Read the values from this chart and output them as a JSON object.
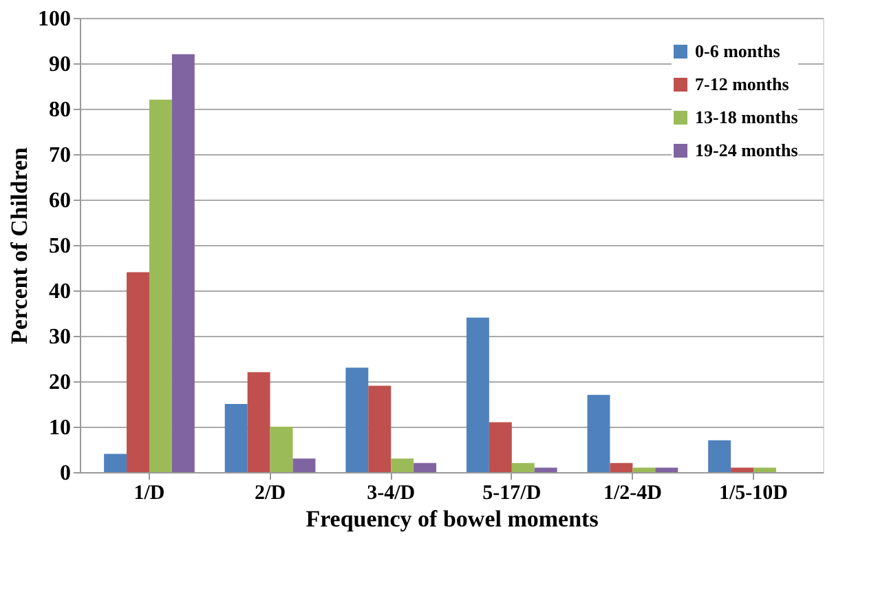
{
  "chart_data": {
    "type": "bar",
    "xlabel": "Frequency of bowel moments",
    "ylabel": "Percent of Children",
    "categories": [
      "1/D",
      "2/D",
      "3-4/D",
      "5-17/D",
      "1/2-4D",
      "1/5-10D"
    ],
    "series": [
      {
        "name": "0-6 months",
        "color": "#4f81bd",
        "values": [
          4,
          15,
          23,
          34,
          17,
          7
        ]
      },
      {
        "name": "7-12 months",
        "color": "#c0504d",
        "values": [
          44,
          22,
          19,
          11,
          2,
          1
        ]
      },
      {
        "name": "13-18 months",
        "color": "#9bbb59",
        "values": [
          82,
          10,
          3,
          2,
          1,
          1
        ]
      },
      {
        "name": "19-24 months",
        "color": "#8064a2",
        "values": [
          92,
          3,
          2,
          1,
          1,
          0
        ]
      }
    ],
    "ylim": [
      0,
      100
    ],
    "yticks": [
      0,
      10,
      20,
      30,
      40,
      50,
      60,
      70,
      80,
      90,
      100
    ],
    "grid": "y",
    "legend": "top right"
  }
}
